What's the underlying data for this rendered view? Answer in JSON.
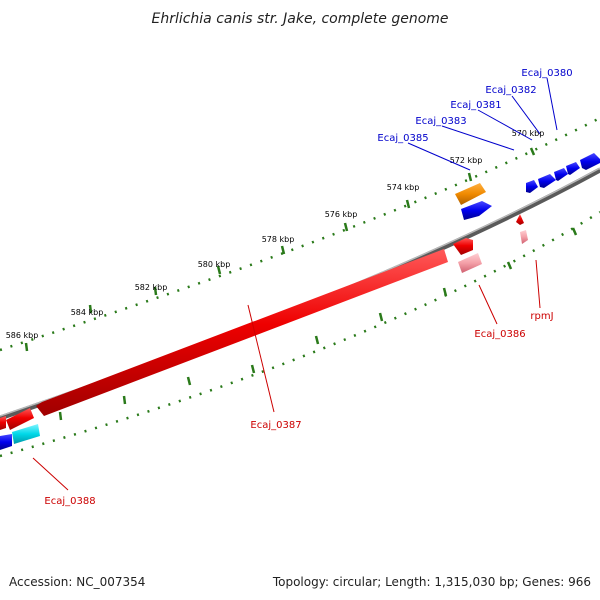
{
  "title": "Ehrlichia canis str. Jake, complete genome",
  "footer": {
    "accession": "Accession: NC_007354",
    "summary": "Topology: circular; Length: 1,315,030 bp; Genes: 966"
  },
  "ticks": [
    "570 kbp",
    "572 kbp",
    "574 kbp",
    "576 kbp",
    "578 kbp",
    "580 kbp",
    "582 kbp",
    "584 kbp",
    "586 kbp"
  ],
  "genes": {
    "ecaj_0380": "Ecaj_0380",
    "ecaj_0382": "Ecaj_0382",
    "ecaj_0381": "Ecaj_0381",
    "ecaj_0383": "Ecaj_0383",
    "ecaj_0385": "Ecaj_0385",
    "ecaj_0386": "Ecaj_0386",
    "rpmj": "rpmJ",
    "ecaj_0387": "Ecaj_0387",
    "ecaj_0388": "Ecaj_0388"
  },
  "colors": {
    "forward_strand": "#0000ee",
    "reverse_strand": "#ee0000",
    "backbone": "#888888",
    "tick": "#2a7a1a",
    "orange_feature": "#f08a00",
    "cyan_feature": "#00d8e8",
    "pink_feature": "#f4a0a8"
  }
}
